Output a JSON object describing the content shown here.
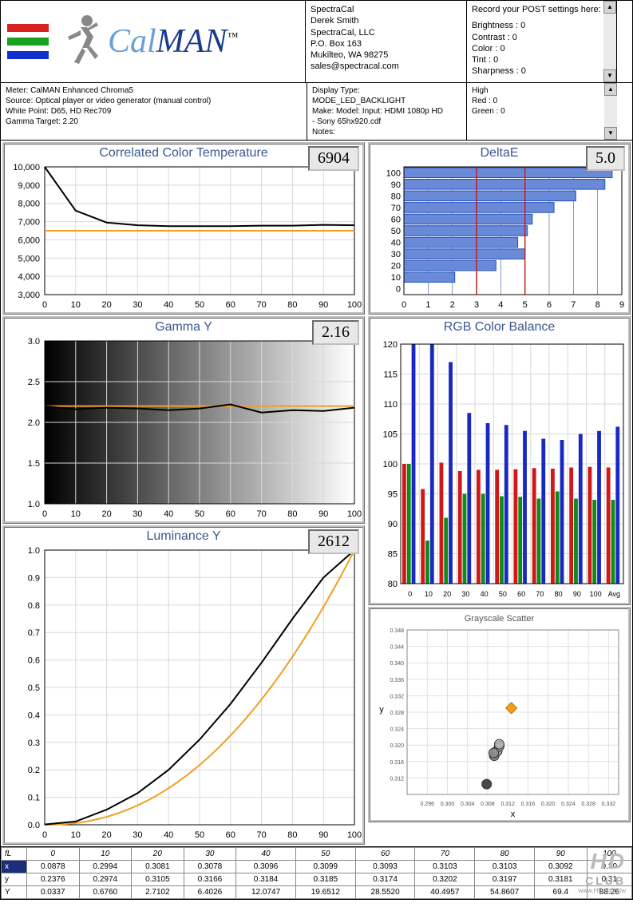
{
  "logo": {
    "text_cal": "Cal",
    "text_man": "MAN",
    "tm": "™",
    "bar_colors": [
      "#d92020",
      "#1aa020",
      "#1030d0"
    ],
    "cal_color": "#6aa0d8",
    "man_color": "#1a3a8a"
  },
  "header_info1": {
    "lines": [
      "SpectraCal",
      "Derek Smith",
      "SpectraCal, LLC",
      "P.O. Box 163",
      "Mukilteo, WA 98275",
      "sales@spectracal.com"
    ]
  },
  "header_info2": {
    "title": "Record your POST settings here:",
    "rows": [
      "Brightness : 0",
      "Contrast   : 0",
      "Color      : 0",
      "Tint       : 0",
      "Sharpness : 0"
    ]
  },
  "meta1": {
    "lines": [
      "Meter: CalMAN Enhanced Chroma5",
      "Source: Optical player or video generator (manual control)",
      "White Point: D65, HD Rec709",
      "Gamma Target: 2.20"
    ]
  },
  "meta2": {
    "lines": [
      "Display Type:",
      "MODE_LED_BACKLIGHT",
      "Make: Model: Input: HDMI 1080p HD",
      "-    Sony 65hx920.cdf",
      "Notes:"
    ]
  },
  "meta3": {
    "lines": [
      "High",
      "Red   : 0",
      "Green : 0"
    ]
  },
  "cct_chart": {
    "title": "Correlated Color Temperature",
    "value": "6904",
    "xlim": [
      0,
      100
    ],
    "xtick_step": 10,
    "ylim": [
      3000,
      10000
    ],
    "ytick_step": 1000,
    "target_y": 6500,
    "target_color": "#f0a020",
    "line_color": "#000000",
    "grid_color": "#d8d8d8",
    "data_x": [
      0,
      10,
      20,
      30,
      40,
      50,
      60,
      70,
      80,
      90,
      100
    ],
    "data_y": [
      12000,
      7600,
      6950,
      6800,
      6750,
      6750,
      6750,
      6780,
      6780,
      6820,
      6800
    ]
  },
  "deltaE_chart": {
    "title": "DeltaE",
    "value": "5.0",
    "xlim": [
      0,
      9
    ],
    "xtick_step": 1,
    "categories": [
      "100",
      "90",
      "80",
      "70",
      "60",
      "50",
      "40",
      "30",
      "20",
      "10",
      "0"
    ],
    "values": [
      8.6,
      8.3,
      7.1,
      6.2,
      5.3,
      5.1,
      4.7,
      5.0,
      3.8,
      2.1,
      0
    ],
    "bar_color": "#6a8ad8",
    "bar_border": "#2050c0",
    "ref_lines": [
      3,
      5
    ],
    "ref_color": "#c02020",
    "grid_color": "#3a5aa8"
  },
  "gamma_chart": {
    "title": "Gamma Y",
    "value": "2.16",
    "xlim": [
      0,
      100
    ],
    "xtick_step": 10,
    "ylim": [
      1,
      3
    ],
    "ytick_step": 0.5,
    "target_y": 2.2,
    "target_color": "#f0a020",
    "line_color": "#000000",
    "grid_color": "#d8d8d8",
    "data_x": [
      0,
      10,
      20,
      30,
      40,
      50,
      60,
      70,
      80,
      90,
      100
    ],
    "data_y": [
      2.2,
      2.16,
      2.18,
      2.17,
      2.15,
      2.17,
      2.22,
      2.12,
      2.15,
      2.14,
      2.18
    ],
    "gradient_from": "#000000",
    "gradient_to": "#ffffff"
  },
  "luminance_chart": {
    "title": "Luminance Y",
    "value": "2612",
    "xlim": [
      0,
      100
    ],
    "xtick_step": 10,
    "ylim": [
      0,
      1
    ],
    "ytick_step": 0.1,
    "target_color": "#f0a020",
    "line_color": "#000000",
    "grid_color": "#d8d8d8",
    "data_x": [
      0,
      10,
      20,
      30,
      40,
      50,
      60,
      70,
      80,
      90,
      100
    ],
    "data_y": [
      0.001,
      0.012,
      0.055,
      0.115,
      0.2,
      0.31,
      0.44,
      0.59,
      0.75,
      0.9,
      1.0
    ]
  },
  "rgb_chart": {
    "title": "RGB Color Balance",
    "xlim": [
      0,
      12
    ],
    "ylim": [
      80,
      120
    ],
    "ytick_step": 5,
    "categories": [
      "0",
      "10",
      "20",
      "30",
      "40",
      "50",
      "60",
      "70",
      "80",
      "90",
      "100",
      "Avg"
    ],
    "grid_color": "#d8d8d8",
    "colors": {
      "r": "#d01818",
      "g": "#108a18",
      "b": "#1828c0"
    },
    "r": [
      100,
      95.8,
      100.2,
      98.8,
      99.0,
      99.0,
      99.1,
      99.3,
      99.2,
      99.4,
      99.5,
      99.4
    ],
    "g": [
      100,
      87.2,
      91.0,
      95.0,
      95.0,
      94.6,
      94.5,
      94.2,
      95.4,
      94.2,
      94.0,
      94.0
    ],
    "b": [
      120,
      120,
      117,
      108.5,
      106.8,
      106.5,
      105.5,
      104.2,
      104.0,
      105.0,
      105.5,
      106.2
    ]
  },
  "scatter_chart": {
    "title": "Grayscale Scatter",
    "xlim": [
      0.292,
      0.334
    ],
    "ylim": [
      0.308,
      0.348
    ],
    "xticks": [
      0.296,
      0.3,
      0.304,
      0.308,
      0.312,
      0.316,
      0.32,
      0.324,
      0.328,
      0.332
    ],
    "yticks": [
      0.312,
      0.316,
      0.32,
      0.324,
      0.328,
      0.332,
      0.336,
      0.34,
      0.344,
      0.348
    ],
    "xlabel": "x",
    "ylabel": "y",
    "grid_color": "#e0e0e0",
    "target": {
      "x": 0.3127,
      "y": 0.329,
      "color": "#f0a020"
    },
    "points": [
      {
        "x": 0.3078,
        "y": 0.3105,
        "fill": "#2a2a2a"
      },
      {
        "x": 0.3093,
        "y": 0.3174,
        "fill": "#707070"
      },
      {
        "x": 0.3096,
        "y": 0.3184,
        "fill": "#8a8a8a"
      },
      {
        "x": 0.3099,
        "y": 0.3185,
        "fill": "#9a9a9a"
      },
      {
        "x": 0.3103,
        "y": 0.3197,
        "fill": "#aaaaaa"
      },
      {
        "x": 0.3103,
        "y": 0.3202,
        "fill": "#b0b0b0"
      },
      {
        "x": 0.3092,
        "y": 0.3181,
        "fill": "#909090"
      }
    ]
  },
  "table": {
    "header_label": "fL",
    "columns": [
      "0",
      "10",
      "20",
      "30",
      "40",
      "50",
      "60",
      "70",
      "80",
      "90",
      "100"
    ],
    "rows": [
      {
        "label": "x",
        "sel": true,
        "values": [
          "0.0878",
          "0.2994",
          "0.3081",
          "0.3078",
          "0.3096",
          "0.3099",
          "0.3093",
          "0.3103",
          "0.3103",
          "0.3092",
          "0.30"
        ]
      },
      {
        "label": "y",
        "sel": false,
        "values": [
          "0.2376",
          "0.2974",
          "0.3105",
          "0.3166",
          "0.3184",
          "0.3185",
          "0.3174",
          "0.3202",
          "0.3197",
          "0.3181",
          "0.31"
        ]
      },
      {
        "label": "Y",
        "sel": false,
        "values": [
          "0.0337",
          "0.6760",
          "2.7102",
          "6.4026",
          "12.0747",
          "19.6512",
          "28.5520",
          "40.4957",
          "54.8607",
          "69.4",
          "88.26"
        ]
      }
    ]
  },
  "watermark": {
    "l1": "HD",
    "l2": "CLUB",
    "l3": "www.HD.Club.tw"
  }
}
